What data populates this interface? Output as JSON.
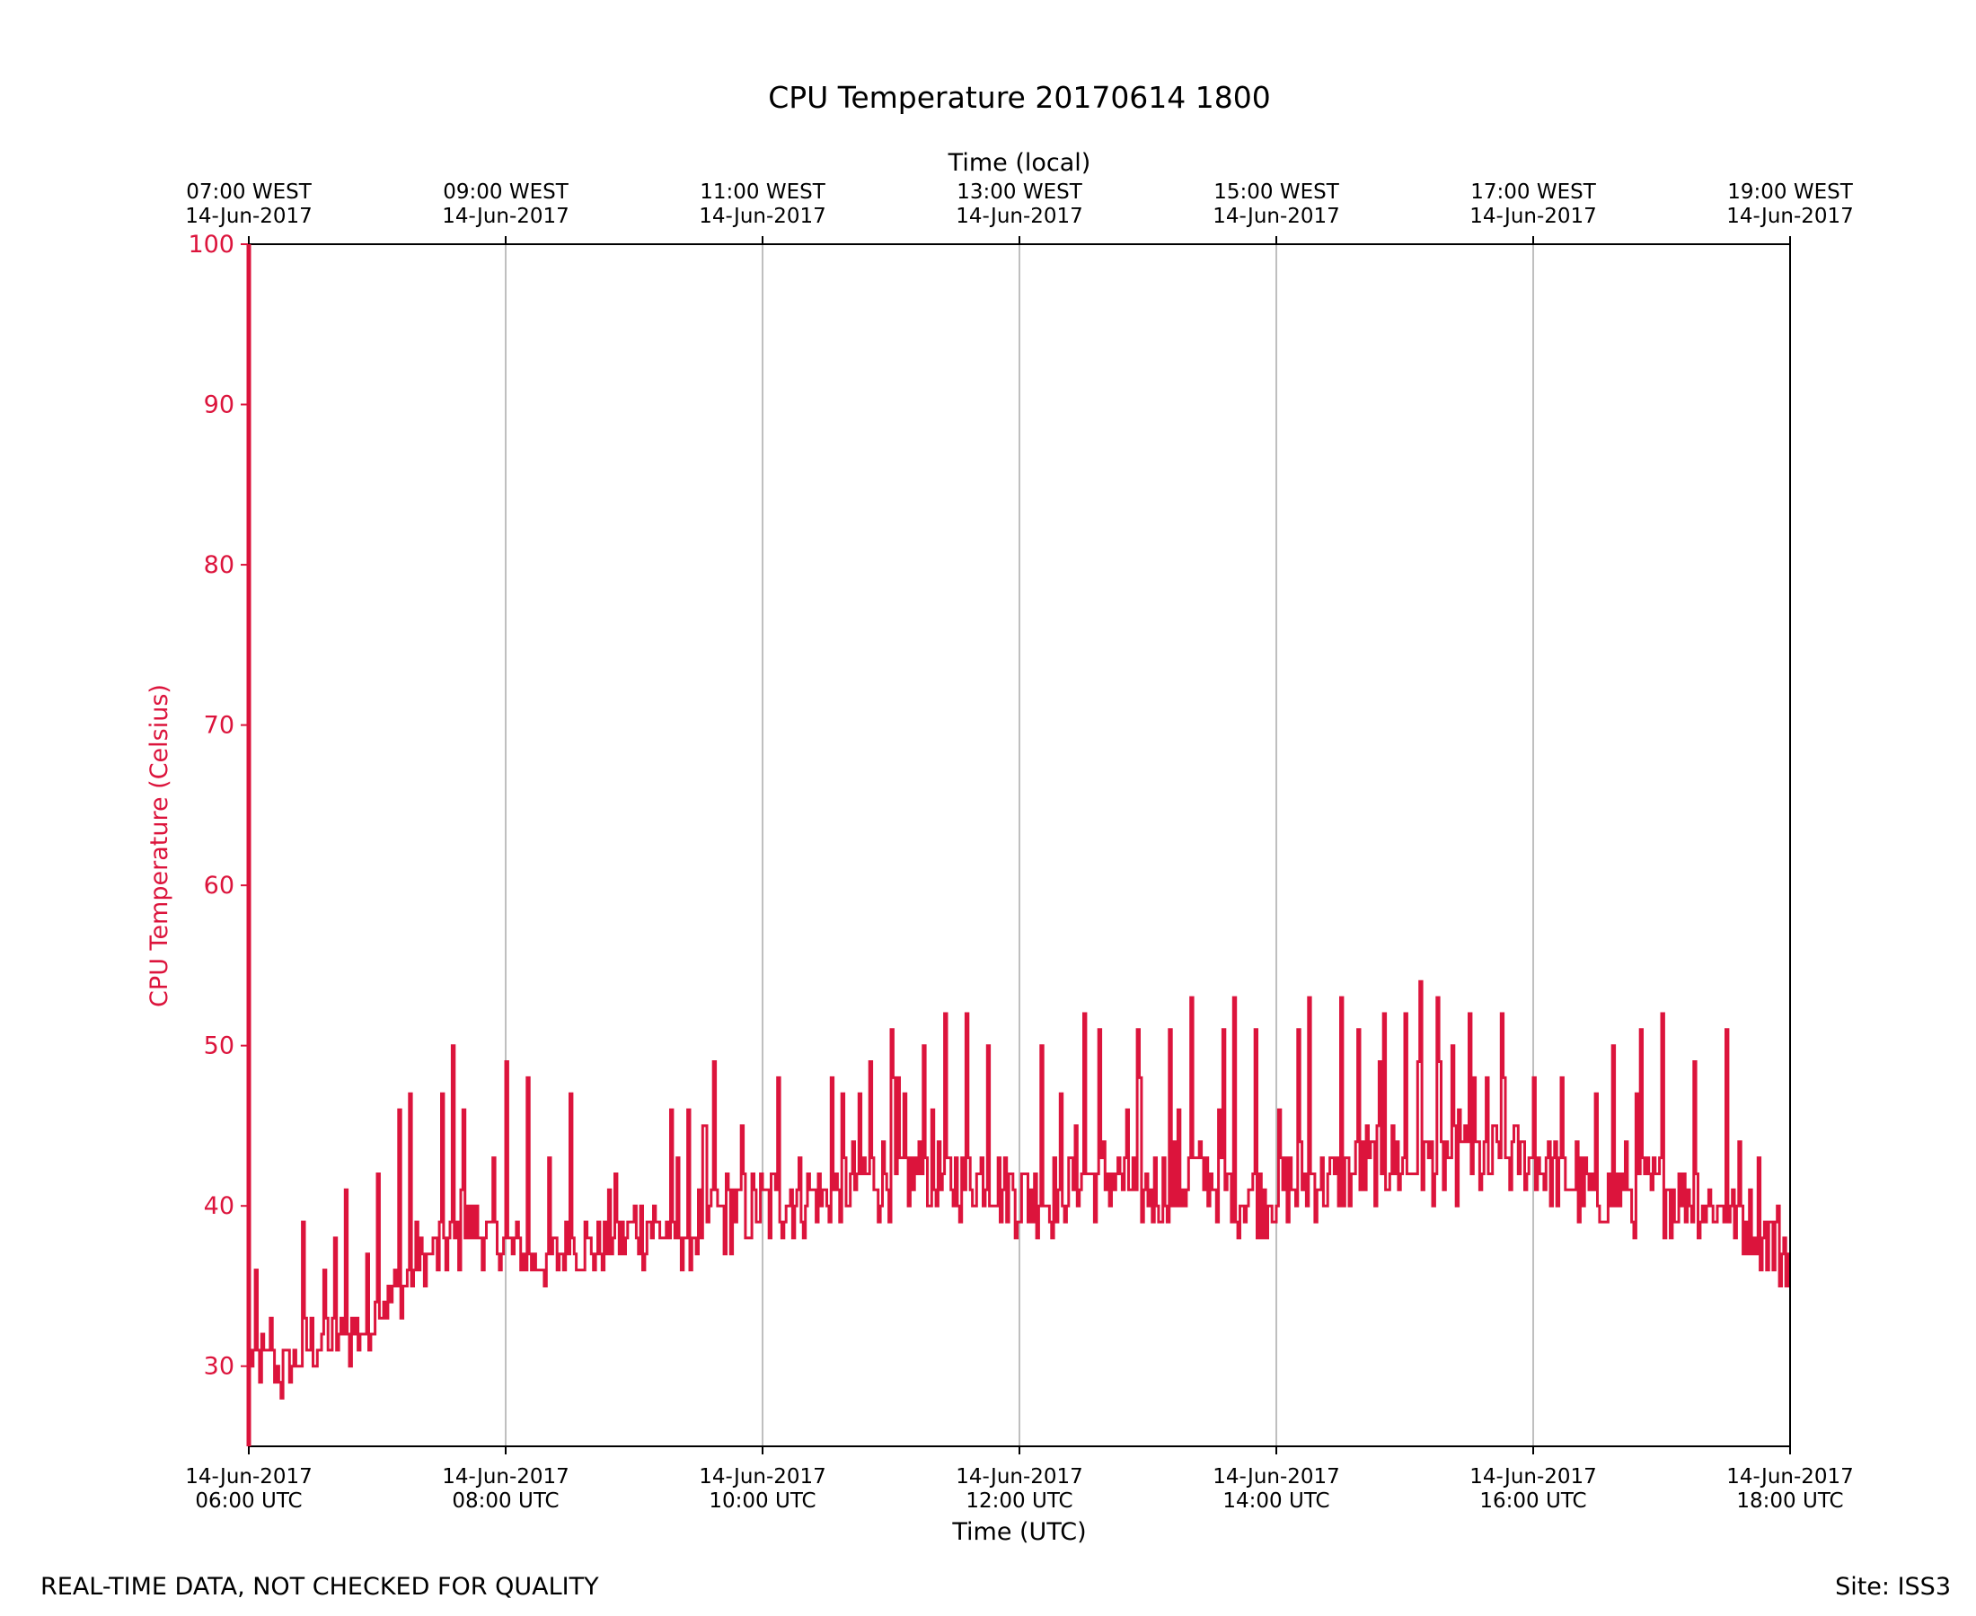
{
  "chart_data": {
    "type": "line",
    "title": "CPU Temperature 20170614 1800",
    "xlabel": "Time (UTC)",
    "x2label": "Time (local)",
    "ylabel": "CPU Temperature (Celsius)",
    "xlim": [
      "2017-06-14T06:00:00Z",
      "2017-06-14T18:00:00Z"
    ],
    "ylim": [
      25,
      100
    ],
    "yticks": [
      30,
      40,
      50,
      60,
      70,
      80,
      90,
      100
    ],
    "xticks_bottom": [
      [
        "14-Jun-2017",
        "06:00 UTC"
      ],
      [
        "14-Jun-2017",
        "08:00 UTC"
      ],
      [
        "14-Jun-2017",
        "10:00 UTC"
      ],
      [
        "14-Jun-2017",
        "12:00 UTC"
      ],
      [
        "14-Jun-2017",
        "14:00 UTC"
      ],
      [
        "14-Jun-2017",
        "16:00 UTC"
      ],
      [
        "14-Jun-2017",
        "18:00 UTC"
      ]
    ],
    "xticks_top": [
      [
        "07:00 WEST",
        "14-Jun-2017"
      ],
      [
        "09:00 WEST",
        "14-Jun-2017"
      ],
      [
        "11:00 WEST",
        "14-Jun-2017"
      ],
      [
        "13:00 WEST",
        "14-Jun-2017"
      ],
      [
        "15:00 WEST",
        "14-Jun-2017"
      ],
      [
        "17:00 WEST",
        "14-Jun-2017"
      ],
      [
        "19:00 WEST",
        "14-Jun-2017"
      ]
    ],
    "grid": "vertical",
    "series": [
      {
        "color": "#dc143c",
        "x": [
          "06:00",
          "06:15",
          "06:30",
          "06:45",
          "07:00",
          "07:15",
          "07:30",
          "07:45",
          "08:00",
          "08:15",
          "08:30",
          "08:45",
          "09:00",
          "09:15",
          "09:30",
          "09:45",
          "10:00",
          "10:15",
          "10:30",
          "10:45",
          "11:00",
          "11:15",
          "11:30",
          "11:45",
          "12:00",
          "12:15",
          "12:30",
          "12:45",
          "13:00",
          "13:15",
          "13:30",
          "13:45",
          "14:00",
          "14:15",
          "14:30",
          "14:45",
          "15:00",
          "15:15",
          "15:30",
          "15:45",
          "16:00",
          "16:15",
          "16:30",
          "16:45",
          "17:00",
          "17:15",
          "17:30",
          "17:45",
          "18:00"
        ],
        "y": [
          30,
          29,
          31,
          31,
          33,
          35,
          37,
          38,
          37,
          36,
          37,
          37,
          38,
          38,
          38,
          39,
          39,
          40,
          40,
          41,
          41,
          41,
          41,
          41,
          40,
          40,
          41,
          41,
          40,
          41,
          41,
          40,
          40,
          41,
          41,
          42,
          42,
          42,
          42,
          42,
          42,
          41,
          40,
          40,
          40,
          40,
          39,
          38,
          36
        ],
        "spikes": [
          {
            "x": "06:10",
            "y": 33
          },
          {
            "x": "06:25",
            "y": 39
          },
          {
            "x": "06:40",
            "y": 38
          },
          {
            "x": "06:45",
            "y": 41
          },
          {
            "x": "07:00",
            "y": 42
          },
          {
            "x": "07:10",
            "y": 46
          },
          {
            "x": "07:15",
            "y": 47
          },
          {
            "x": "07:30",
            "y": 47
          },
          {
            "x": "07:35",
            "y": 50
          },
          {
            "x": "07:40",
            "y": 46
          },
          {
            "x": "08:00",
            "y": 49
          },
          {
            "x": "08:10",
            "y": 48
          },
          {
            "x": "08:30",
            "y": 47
          },
          {
            "x": "09:20",
            "y": 43
          },
          {
            "x": "09:37",
            "y": 49
          },
          {
            "x": "10:07",
            "y": 48
          },
          {
            "x": "10:32",
            "y": 48
          },
          {
            "x": "10:50",
            "y": 49
          },
          {
            "x": "11:00",
            "y": 51
          },
          {
            "x": "11:15",
            "y": 50
          },
          {
            "x": "11:25",
            "y": 52
          },
          {
            "x": "11:35",
            "y": 52
          },
          {
            "x": "11:45",
            "y": 50
          },
          {
            "x": "12:10",
            "y": 50
          },
          {
            "x": "12:30",
            "y": 52
          },
          {
            "x": "12:37",
            "y": 51
          },
          {
            "x": "12:55",
            "y": 51
          },
          {
            "x": "13:10",
            "y": 51
          },
          {
            "x": "13:20",
            "y": 53
          },
          {
            "x": "13:35",
            "y": 51
          },
          {
            "x": "13:40",
            "y": 53
          },
          {
            "x": "13:50",
            "y": 51
          },
          {
            "x": "14:10",
            "y": 51
          },
          {
            "x": "14:15",
            "y": 53
          },
          {
            "x": "14:30",
            "y": 53
          },
          {
            "x": "14:38",
            "y": 51
          },
          {
            "x": "14:50",
            "y": 52
          },
          {
            "x": "15:00",
            "y": 52
          },
          {
            "x": "15:07",
            "y": 54
          },
          {
            "x": "15:15",
            "y": 53
          },
          {
            "x": "15:30",
            "y": 52
          },
          {
            "x": "15:45",
            "y": 52
          },
          {
            "x": "16:00",
            "y": 48
          },
          {
            "x": "16:20",
            "y": 44
          },
          {
            "x": "16:37",
            "y": 50
          },
          {
            "x": "16:50",
            "y": 51
          },
          {
            "x": "17:00",
            "y": 52
          },
          {
            "x": "17:15",
            "y": 49
          },
          {
            "x": "17:30",
            "y": 51
          },
          {
            "x": "17:45",
            "y": 43
          }
        ]
      }
    ]
  },
  "footer": {
    "left": "REAL-TIME DATA, NOT CHECKED FOR QUALITY",
    "right": "Site: ISS3"
  }
}
